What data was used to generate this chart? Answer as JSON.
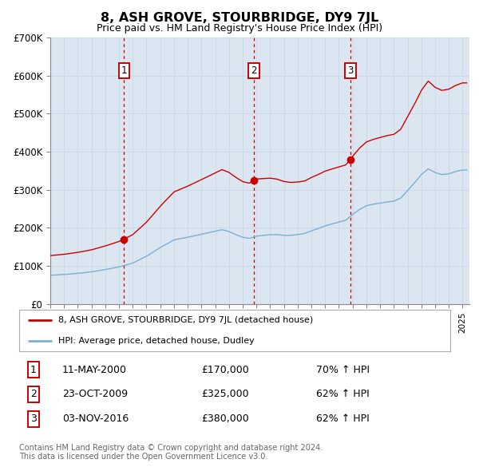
{
  "title": "8, ASH GROVE, STOURBRIDGE, DY9 7JL",
  "subtitle": "Price paid vs. HM Land Registry's House Price Index (HPI)",
  "xlim": [
    1995.0,
    2025.5
  ],
  "ylim": [
    0,
    700000
  ],
  "yticks": [
    0,
    100000,
    200000,
    300000,
    400000,
    500000,
    600000,
    700000
  ],
  "ytick_labels": [
    "£0",
    "£100K",
    "£200K",
    "£300K",
    "£400K",
    "£500K",
    "£600K",
    "£700K"
  ],
  "sale_dates_year": [
    2000.36,
    2009.81,
    2016.84
  ],
  "sale_prices": [
    170000,
    325000,
    380000
  ],
  "sale_labels": [
    "1",
    "2",
    "3"
  ],
  "legend_line1": "8, ASH GROVE, STOURBRIDGE, DY9 7JL (detached house)",
  "legend_line2": "HPI: Average price, detached house, Dudley",
  "table_rows": [
    [
      "1",
      "11-MAY-2000",
      "£170,000",
      "70% ↑ HPI"
    ],
    [
      "2",
      "23-OCT-2009",
      "£325,000",
      "62% ↑ HPI"
    ],
    [
      "3",
      "03-NOV-2016",
      "£380,000",
      "62% ↑ HPI"
    ]
  ],
  "footer": "Contains HM Land Registry data © Crown copyright and database right 2024.\nThis data is licensed under the Open Government Licence v3.0.",
  "red_color": "#cc0000",
  "blue_color": "#7bafd4",
  "background_color": "#dce6f1",
  "grid_color": "#c8d8e8"
}
